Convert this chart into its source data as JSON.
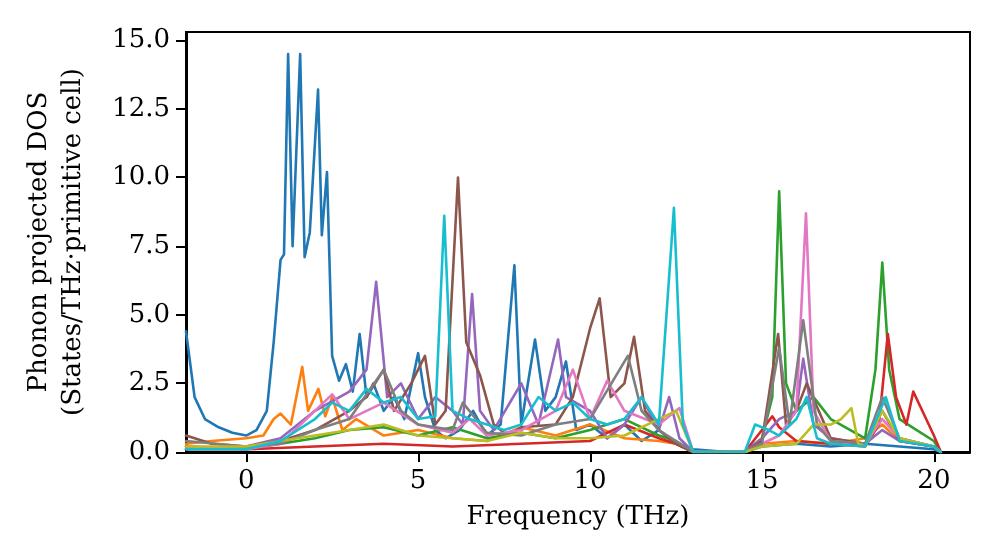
{
  "chart_data": {
    "type": "line",
    "xlabel": "Frequency (THz)",
    "ylabel": "Phonon projected DOS\n(States/THz·primitive cell)",
    "xlim": [
      -1.75,
      21.05
    ],
    "ylim": [
      0,
      15.3
    ],
    "xticks": [
      0,
      5,
      10,
      15,
      20
    ],
    "yticks": [
      {
        "value": 0,
        "label": "0.0"
      },
      {
        "value": 2.5,
        "label": "2.5"
      },
      {
        "value": 5,
        "label": "5.0"
      },
      {
        "value": 7.5,
        "label": "7.5"
      },
      {
        "value": 10,
        "label": "10.0"
      },
      {
        "value": 12.5,
        "label": "12.5"
      },
      {
        "value": 15,
        "label": "15.0"
      }
    ],
    "grid": false,
    "marker": "none",
    "line_style": "solid",
    "series": [
      {
        "color": "#1f77b4",
        "x": [
          -1.75,
          -1.5,
          -1.2,
          -0.8,
          -0.4,
          0,
          0.3,
          0.6,
          0.8,
          1.0,
          1.1,
          1.22,
          1.35,
          1.57,
          1.7,
          1.85,
          2.09,
          2.2,
          2.35,
          2.5,
          2.7,
          2.9,
          3.1,
          3.3,
          3.5,
          3.7,
          4.0,
          4.3,
          4.6,
          5.0,
          5.2,
          5.5,
          5.8,
          6.2,
          6.6,
          7.0,
          7.4,
          7.8,
          8.0,
          8.4,
          8.7,
          9.0,
          9.3,
          9.6,
          10.0,
          10.5,
          11.0,
          11.5,
          12.0,
          12.5,
          13.0,
          14.0,
          14.5,
          15,
          16,
          17,
          18,
          19,
          20,
          20.2
        ],
        "values": [
          4.4,
          2.0,
          1.2,
          0.9,
          0.7,
          0.6,
          0.8,
          1.5,
          4.0,
          7.0,
          7.2,
          14.5,
          7.5,
          14.5,
          7.1,
          8.0,
          13.2,
          7.9,
          10.2,
          3.5,
          2.6,
          3.2,
          2.2,
          4.3,
          2.0,
          2.5,
          1.5,
          2.0,
          1.2,
          3.6,
          2.0,
          0.8,
          0.5,
          0.8,
          1.5,
          0.6,
          1.0,
          6.8,
          1.0,
          4.1,
          1.5,
          2.0,
          3.3,
          0.8,
          1.0,
          0.5,
          1.0,
          0.4,
          0.8,
          0.3,
          0.1,
          0,
          0,
          0.2,
          0.3,
          0.2,
          0.3,
          0.2,
          0.1,
          0
        ]
      },
      {
        "color": "#ff7f0e",
        "x": [
          -1.75,
          -1,
          0,
          0.5,
          0.8,
          1.0,
          1.3,
          1.63,
          1.8,
          2.1,
          2.3,
          2.5,
          2.8,
          3.2,
          4,
          5,
          6,
          7,
          8,
          9,
          10,
          11,
          12,
          12.5,
          13,
          14.5,
          15,
          16,
          17,
          18,
          18.5,
          19,
          20,
          20.2
        ],
        "values": [
          0.3,
          0.4,
          0.5,
          0.6,
          1.2,
          1.4,
          1.0,
          3.1,
          1.5,
          2.3,
          1.3,
          2.0,
          0.8,
          1.2,
          0.6,
          0.8,
          0.5,
          0.4,
          0.9,
          0.6,
          1.0,
          0.5,
          0.4,
          0.3,
          0,
          0,
          0.3,
          0.4,
          0.3,
          0.5,
          1.0,
          0.4,
          0.2,
          0
        ]
      },
      {
        "color": "#2ca02c",
        "x": [
          -1.75,
          0,
          1,
          2,
          3,
          4,
          5,
          6,
          7,
          8,
          9,
          10,
          11,
          12,
          12.5,
          13,
          14.5,
          15,
          15.3,
          15.5,
          15.7,
          16,
          16.5,
          17,
          18,
          18.3,
          18.5,
          18.7,
          19,
          19.5,
          20,
          20.2
        ],
        "values": [
          0.2,
          0.1,
          0.3,
          0.5,
          0.8,
          0.9,
          0.6,
          0.9,
          0.5,
          0.7,
          0.5,
          0.8,
          1.2,
          0.6,
          0.4,
          0,
          0,
          0.5,
          2.0,
          9.5,
          2.5,
          1.5,
          2.0,
          1.2,
          0.5,
          3.0,
          6.9,
          3.0,
          1.2,
          0.8,
          0.4,
          0
        ]
      },
      {
        "color": "#d62728",
        "x": [
          -1.75,
          0,
          2,
          4,
          6,
          8,
          10,
          11,
          12,
          12.5,
          13,
          14.5,
          15,
          15.3,
          15.5,
          16,
          17,
          18,
          18.4,
          18.66,
          18.9,
          19.2,
          19.4,
          19.7,
          20,
          20.2
        ],
        "values": [
          0.1,
          0.1,
          0.2,
          0.3,
          0.2,
          0.3,
          0.4,
          1.0,
          0.5,
          0.3,
          0,
          0,
          0.8,
          1.3,
          0.9,
          0.4,
          0.3,
          0.2,
          1.0,
          4.3,
          2.0,
          1.0,
          2.2,
          1.4,
          0.6,
          0
        ]
      },
      {
        "color": "#9467bd",
        "x": [
          -1.75,
          0,
          1,
          2,
          3,
          3.5,
          3.78,
          4.1,
          4.5,
          5,
          5.5,
          6,
          6.3,
          6.57,
          6.8,
          7.2,
          8,
          8.5,
          9.07,
          9.3,
          10,
          10.5,
          11,
          11.5,
          12,
          12.3,
          12.6,
          13,
          14.5,
          15,
          15.5,
          16,
          16.2,
          16.5,
          17,
          18,
          18.5,
          19,
          20,
          20.2
        ],
        "values": [
          0.1,
          0.2,
          0.5,
          1.5,
          2.2,
          3.0,
          6.2,
          2.0,
          2.5,
          1.2,
          2.0,
          1.5,
          1.0,
          5.75,
          1.5,
          0.8,
          2.5,
          1.0,
          4.1,
          2.0,
          1.5,
          0.5,
          1.0,
          2.0,
          0.8,
          2.0,
          0.5,
          0,
          0,
          0.5,
          1.2,
          1.5,
          3.4,
          1.0,
          0.5,
          0.3,
          0.8,
          0.4,
          0.2,
          0
        ]
      },
      {
        "color": "#8c564b",
        "x": [
          -1.75,
          -1,
          0,
          1,
          2,
          3,
          3.5,
          4.0,
          4.3,
          4.8,
          5.2,
          5.5,
          5.8,
          6.16,
          6.4,
          6.8,
          7.2,
          7.6,
          8,
          9,
          9.5,
          10,
          10.28,
          10.6,
          11,
          11.28,
          11.6,
          12,
          12.5,
          13,
          14.5,
          15,
          15.47,
          15.7,
          16,
          16.3,
          17,
          18,
          18.5,
          19,
          20,
          20.2
        ],
        "values": [
          0.6,
          0.3,
          0.2,
          0.4,
          0.8,
          1.5,
          2.0,
          3.0,
          1.5,
          2.5,
          3.5,
          1.0,
          1.5,
          10.0,
          4.0,
          2.8,
          1.0,
          0.6,
          0.9,
          1.0,
          2.0,
          4.5,
          5.6,
          2.0,
          2.5,
          4.2,
          1.5,
          0.8,
          0.3,
          0,
          0,
          0.4,
          4.3,
          1.0,
          1.5,
          2.5,
          0.5,
          0.3,
          1.5,
          0.4,
          0.2,
          0
        ]
      },
      {
        "color": "#e377c2",
        "x": [
          -1.75,
          0,
          1,
          2,
          2.5,
          3,
          4,
          5,
          6,
          6.5,
          7,
          8,
          9,
          9.5,
          10,
          10.5,
          11,
          12,
          12.6,
          13,
          14.5,
          15,
          15.5,
          16,
          16.28,
          16.5,
          17,
          18,
          18.5,
          19,
          20,
          20.2
        ],
        "values": [
          0.2,
          0.1,
          0.3,
          1.5,
          2.1,
          1.2,
          1.8,
          1.0,
          0.7,
          1.2,
          0.6,
          0.8,
          1.5,
          3.0,
          1.2,
          2.6,
          1.5,
          1.0,
          1.6,
          0,
          0,
          0.3,
          0.6,
          1.5,
          8.7,
          1.5,
          0.4,
          0.3,
          1.2,
          0.5,
          0.2,
          0
        ]
      },
      {
        "color": "#7f7f7f",
        "x": [
          -1.75,
          0,
          1,
          2,
          3,
          4.0,
          4.5,
          5,
          6,
          6.3,
          7,
          8,
          9,
          10,
          11.1,
          11.5,
          12,
          13,
          14.5,
          15,
          15.5,
          15.8,
          16.2,
          16.6,
          17,
          18,
          18.5,
          19,
          20,
          20.2
        ],
        "values": [
          0.4,
          0.2,
          0.3,
          0.8,
          1.2,
          3.0,
          1.5,
          1.0,
          0.8,
          1.8,
          0.7,
          0.6,
          1.0,
          1.2,
          3.5,
          1.5,
          0.8,
          0,
          0,
          0.3,
          3.8,
          1.0,
          4.8,
          1.0,
          0.4,
          0.3,
          2.0,
          0.5,
          0.2,
          0
        ]
      },
      {
        "color": "#bcbd22",
        "x": [
          -1.75,
          0,
          1,
          2,
          3,
          4,
          5,
          6,
          7,
          8,
          9,
          10,
          11,
          12,
          12.5,
          13,
          14.5,
          15,
          16,
          16.5,
          17,
          17.3,
          17.6,
          17.8,
          18,
          18.5,
          19,
          20,
          20.2
        ],
        "values": [
          0.2,
          0.2,
          0.4,
          0.6,
          0.8,
          1.0,
          0.6,
          0.5,
          0.4,
          0.7,
          0.5,
          0.5,
          0.6,
          1.2,
          1.5,
          0,
          0,
          0.2,
          0.3,
          1.0,
          1.0,
          1.2,
          1.6,
          0.3,
          0.2,
          1.5,
          0.5,
          0.2,
          0
        ]
      },
      {
        "color": "#17becf",
        "x": [
          -1.75,
          0,
          1,
          2,
          2.5,
          3,
          3.5,
          4,
          4.5,
          5,
          5.5,
          5.76,
          6.0,
          6.5,
          7,
          7.5,
          8,
          8.5,
          9,
          9.5,
          10,
          10.5,
          11,
          11.5,
          12,
          12.44,
          12.7,
          13,
          14.5,
          14.8,
          15.2,
          15.5,
          16,
          16.3,
          16.6,
          17,
          18,
          18.6,
          19,
          20,
          20.2
        ],
        "values": [
          0.1,
          0.1,
          0.4,
          1.2,
          1.8,
          1.5,
          2.3,
          1.8,
          2.0,
          1.2,
          1.3,
          8.6,
          1.5,
          1.2,
          1.0,
          0.8,
          1.0,
          2.0,
          1.5,
          1.8,
          1.2,
          1.0,
          1.2,
          2.0,
          1.0,
          8.9,
          1.0,
          0,
          0,
          1.0,
          0.8,
          0.6,
          1.2,
          2.0,
          0.5,
          0.3,
          0.2,
          2.0,
          0.4,
          0.2,
          0
        ]
      }
    ]
  }
}
